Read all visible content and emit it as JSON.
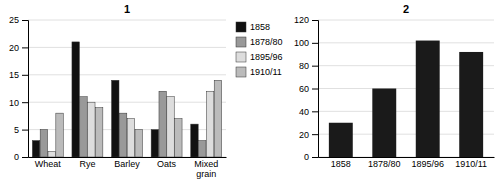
{
  "chart_data": [
    {
      "type": "bar",
      "title": "1",
      "categories": [
        "Wheat",
        "Rye",
        "Barley",
        "Oats",
        "Mixed\ngrain"
      ],
      "series": [
        {
          "name": "1858",
          "color": "#111111",
          "values": [
            3,
            21,
            14,
            5,
            6
          ]
        },
        {
          "name": "1878/80",
          "color": "#999999",
          "values": [
            5,
            11,
            8,
            12,
            3
          ]
        },
        {
          "name": "1895/96",
          "color": "#dddddd",
          "values": [
            1,
            10,
            7,
            11,
            12
          ]
        },
        {
          "name": "1910/11",
          "color": "#bbbbbb",
          "values": [
            8,
            9,
            5,
            7,
            14
          ]
        }
      ],
      "ylim": [
        0,
        25
      ],
      "yticks": [
        0,
        5,
        10,
        15,
        20,
        25
      ],
      "grid": true,
      "legend": "right"
    },
    {
      "type": "bar",
      "title": "2",
      "categories": [
        "1858",
        "1878/80",
        "1895/96",
        "1910/11"
      ],
      "values": [
        30,
        60,
        102,
        92
      ],
      "color": "#1a1a1a",
      "ylim": [
        0,
        120
      ],
      "yticks": [
        0,
        20,
        40,
        60,
        80,
        100,
        120
      ],
      "grid": true
    }
  ]
}
